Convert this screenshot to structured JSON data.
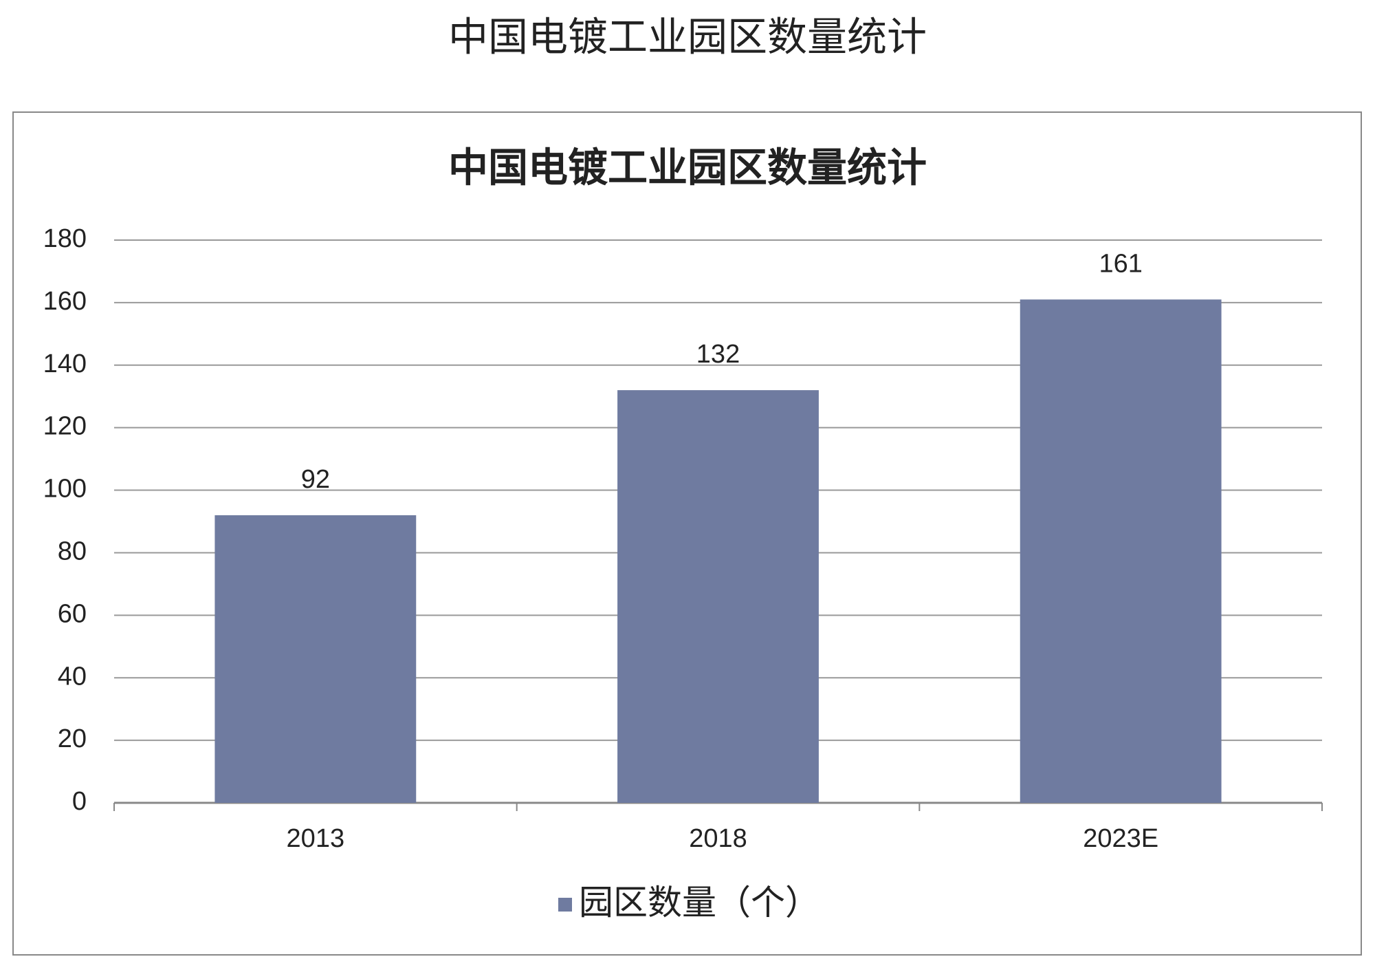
{
  "header": {
    "title": "中国电镀工业园区数量统计"
  },
  "chart_data": {
    "type": "bar",
    "title": "中国电镀工业园区数量统计",
    "categories": [
      "2013",
      "2018",
      "2023E"
    ],
    "series": [
      {
        "name": "园区数量（个）",
        "color": "#6f7ba0",
        "values": [
          92,
          132,
          161
        ]
      }
    ],
    "ylim": [
      0,
      180
    ],
    "yticks": [
      0,
      20,
      40,
      60,
      80,
      100,
      120,
      140,
      160,
      180
    ],
    "grid": true,
    "data_labels": true,
    "legend": "bottom"
  }
}
